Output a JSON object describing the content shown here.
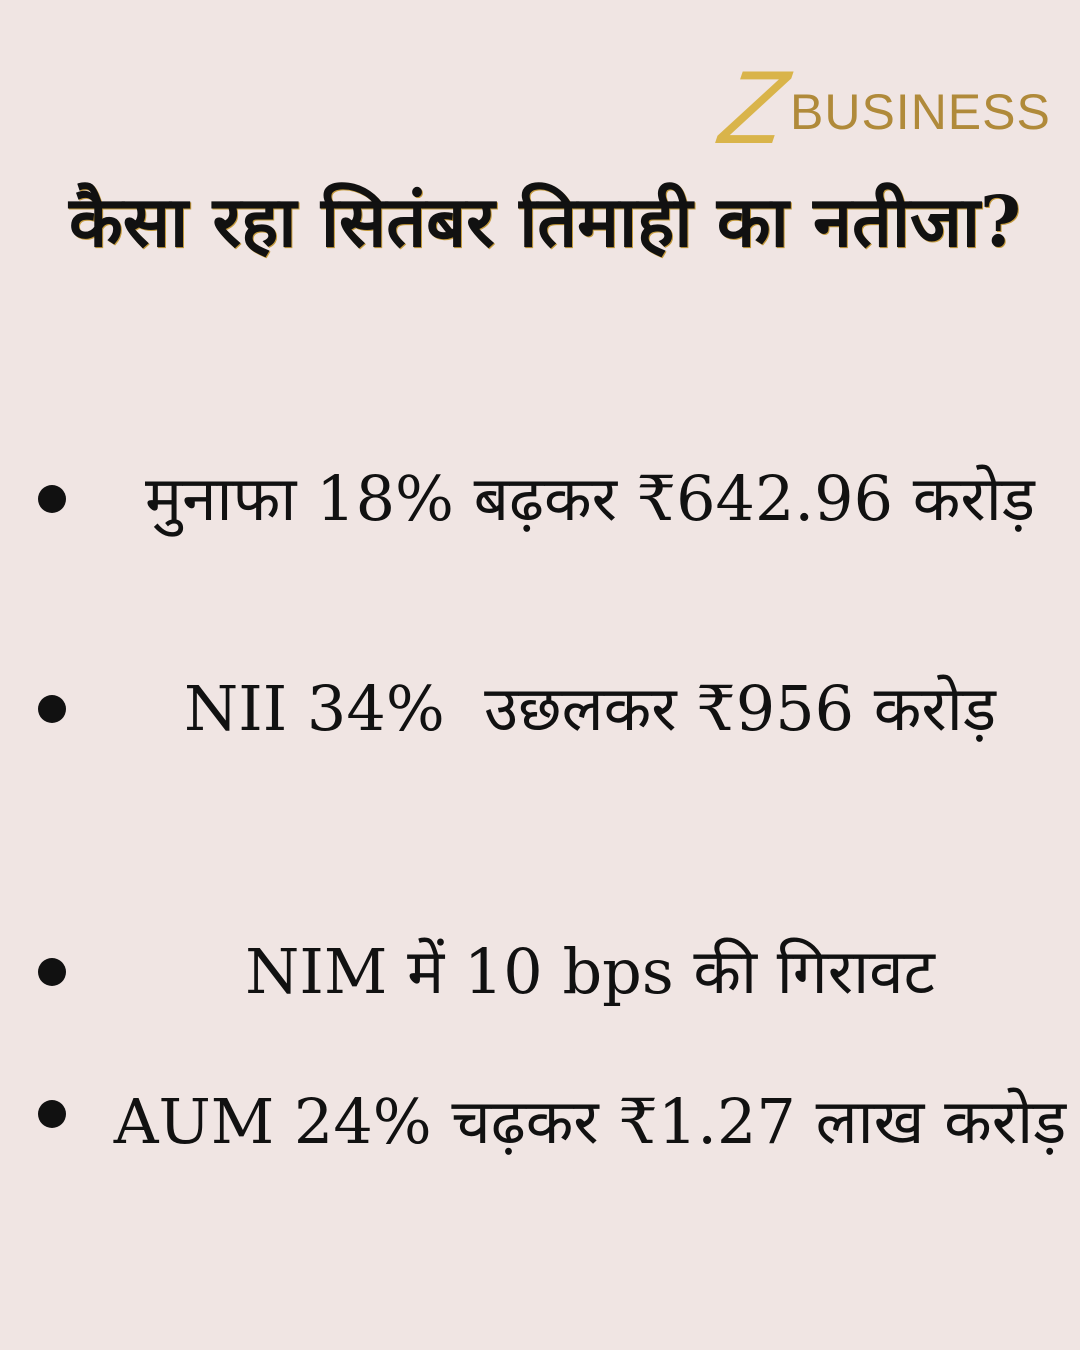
{
  "logo": {
    "mark": "Z",
    "text": "BUSINESS"
  },
  "title": "कैसा रहा सितंबर तिमाही का नतीजा?",
  "bullets": [
    "मुनाफा 18% बढ़कर ₹642.96 करोड़",
    "NII 34%  उछलकर ₹956 करोड़",
    "NIM में 10 bps की गिरावट",
    "AUM 24% चढ़कर ₹1.27 लाख करोड़"
  ]
}
